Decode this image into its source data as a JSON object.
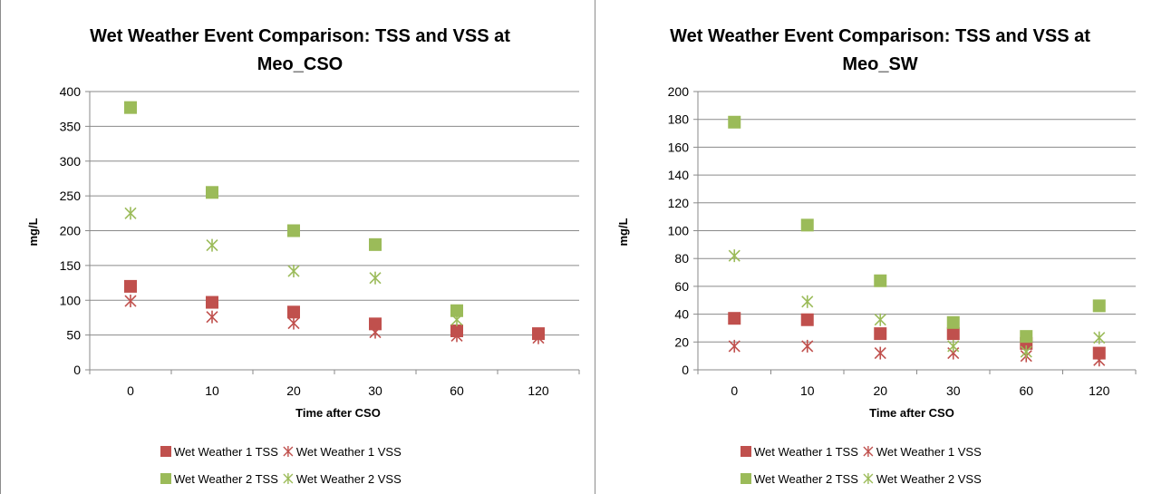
{
  "chart_data": [
    {
      "type": "scatter",
      "title_line1": "Wet Weather Event Comparison: TSS and VSS at",
      "title_line2": "Meo_CSO",
      "xlabel": "Time after CSO",
      "ylabel": "mg/L",
      "categories": [
        "0",
        "10",
        "20",
        "30",
        "60",
        "120"
      ],
      "ylim": [
        0,
        400
      ],
      "yticks": [
        "0",
        "50",
        "100",
        "150",
        "200",
        "250",
        "300",
        "350",
        "400"
      ],
      "grid": true,
      "legend_position": "bottom",
      "series": [
        {
          "name": "Wet Weather 1 TSS",
          "marker": "square",
          "color": "#c0504d",
          "values": [
            120,
            97,
            83,
            66,
            56,
            52
          ]
        },
        {
          "name": "Wet Weather 1 VSS",
          "marker": "star",
          "color": "#c0504d",
          "values": [
            99,
            76,
            67,
            54,
            49,
            46
          ]
        },
        {
          "name": "Wet Weather 2 TSS",
          "marker": "square",
          "color": "#9bbb59",
          "values": [
            377,
            255,
            200,
            180,
            85,
            null
          ]
        },
        {
          "name": "Wet Weather 2 VSS",
          "marker": "star",
          "color": "#9bbb59",
          "values": [
            225,
            179,
            142,
            132,
            72,
            null
          ]
        }
      ]
    },
    {
      "type": "scatter",
      "title_line1": "Wet Weather Event Comparison: TSS and VSS at",
      "title_line2": "Meo_SW",
      "xlabel": "Time after CSO",
      "ylabel": "mg/L",
      "categories": [
        "0",
        "10",
        "20",
        "30",
        "60",
        "120"
      ],
      "ylim": [
        0,
        200
      ],
      "yticks": [
        "0",
        "20",
        "40",
        "60",
        "80",
        "100",
        "120",
        "140",
        "160",
        "180",
        "200"
      ],
      "grid": true,
      "legend_position": "bottom",
      "series": [
        {
          "name": "Wet Weather 1 TSS",
          "marker": "square",
          "color": "#c0504d",
          "values": [
            37,
            36,
            26,
            26,
            19,
            12
          ]
        },
        {
          "name": "Wet Weather 1 VSS",
          "marker": "star",
          "color": "#c0504d",
          "values": [
            17,
            17,
            12,
            12,
            10,
            7
          ]
        },
        {
          "name": "Wet Weather 2 TSS",
          "marker": "square",
          "color": "#9bbb59",
          "values": [
            178,
            104,
            64,
            34,
            24,
            46
          ]
        },
        {
          "name": "Wet Weather 2 VSS",
          "marker": "star",
          "color": "#9bbb59",
          "values": [
            82,
            49,
            36,
            17,
            13,
            23
          ]
        }
      ]
    }
  ]
}
